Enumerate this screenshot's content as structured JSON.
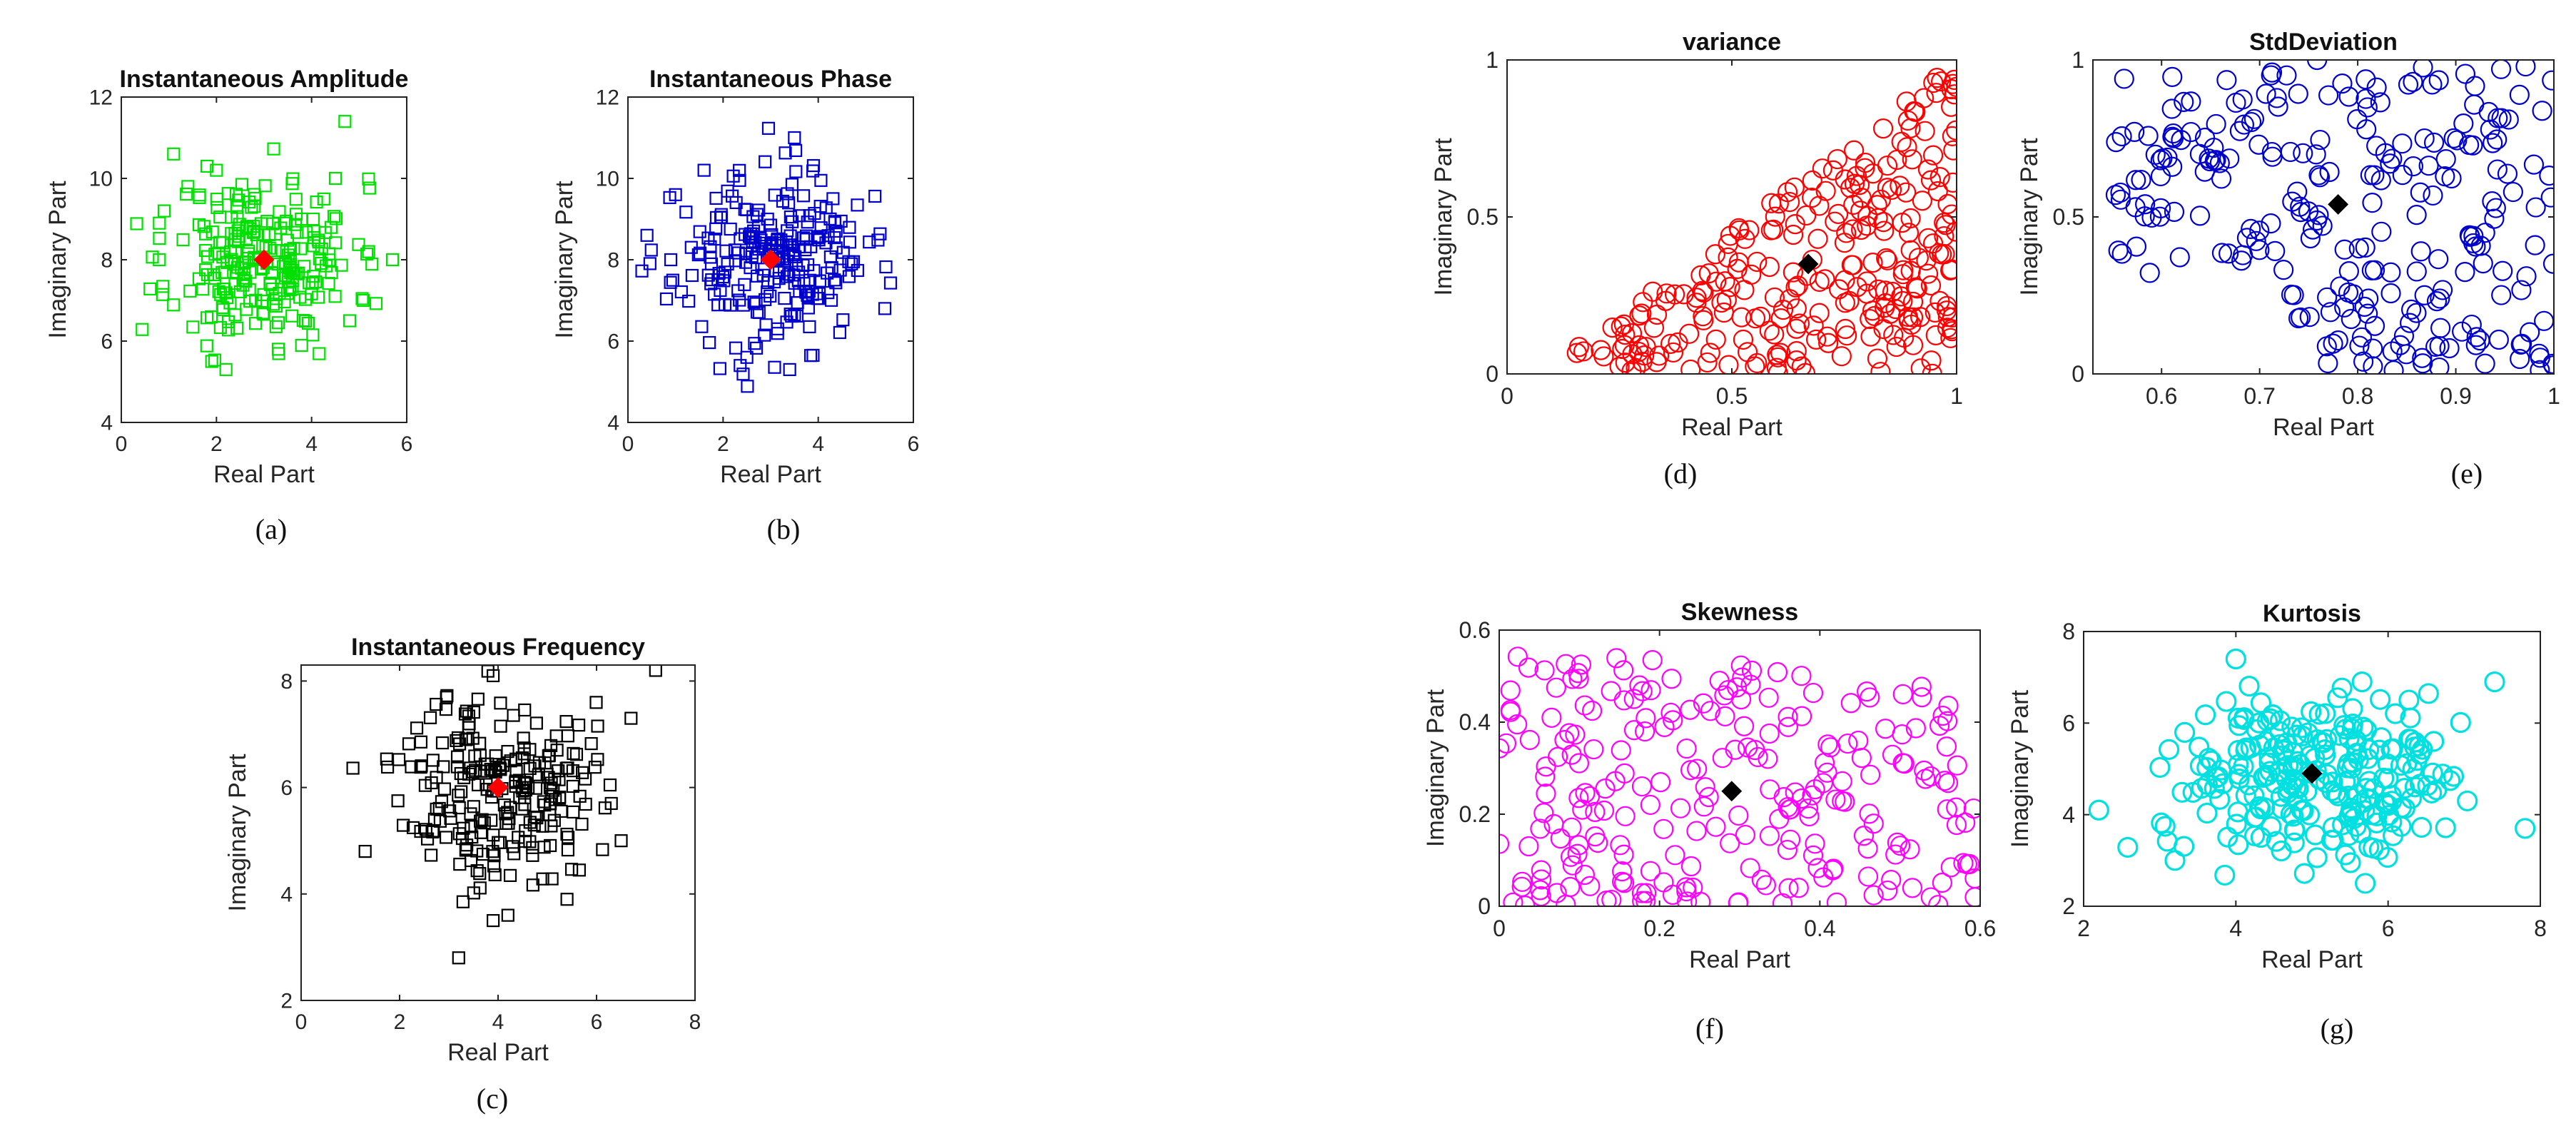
{
  "chart_data": [
    {
      "id": "a",
      "type": "scatter",
      "title": "Instantaneous Amplitude",
      "xlabel": "Real Part",
      "ylabel": "Imaginary Part",
      "caption": "(a)",
      "xlim": [
        0,
        6
      ],
      "ylim": [
        4,
        12
      ],
      "xticks": [
        "0",
        "2",
        "4",
        "6"
      ],
      "yticks": [
        "4",
        "6",
        "8",
        "10",
        "12"
      ],
      "marker": "square",
      "color": "#00e000",
      "center": [
        3.0,
        8.0
      ],
      "center_color": "#ff0000",
      "cloud": {
        "mx": 3.0,
        "my": 8.0,
        "sx": 0.95,
        "sy": 1.0,
        "n": 230,
        "seed": 11
      },
      "points": [
        [
          0.8,
          8.9
        ],
        [
          0.9,
          9.2
        ],
        [
          1.1,
          10.6
        ],
        [
          0.8,
          8.0
        ],
        [
          1.8,
          10.3
        ],
        [
          2.0,
          10.2
        ],
        [
          1.9,
          5.5
        ],
        [
          2.2,
          5.3
        ],
        [
          4.7,
          11.4
        ],
        [
          5.2,
          8.2
        ],
        [
          5.7,
          8.0
        ],
        [
          4.8,
          6.5
        ],
        [
          3.3,
          5.8
        ],
        [
          1.4,
          9.8
        ],
        [
          4.5,
          10.0
        ]
      ]
    },
    {
      "id": "b",
      "type": "scatter",
      "title": "Instantaneous Phase",
      "xlabel": "Real Part",
      "ylabel": "Imaginary Part",
      "caption": "(b)",
      "xlim": [
        0,
        6
      ],
      "ylim": [
        4,
        12
      ],
      "xticks": [
        "0",
        "2",
        "4",
        "6"
      ],
      "yticks": [
        "4",
        "6",
        "8",
        "10",
        "12"
      ],
      "marker": "square",
      "color": "#0000cc",
      "center": [
        3.0,
        8.0
      ],
      "center_color": "#ff0000",
      "cloud": {
        "mx": 3.0,
        "my": 8.0,
        "sx": 1.0,
        "sy": 1.05,
        "n": 240,
        "seed": 23
      },
      "points": [
        [
          0.4,
          8.6
        ],
        [
          0.9,
          8.0
        ],
        [
          1.6,
          10.2
        ],
        [
          3.5,
          11.0
        ],
        [
          5.4,
          6.8
        ],
        [
          4.7,
          7.9
        ],
        [
          3.4,
          5.3
        ],
        [
          2.5,
          5.6
        ],
        [
          1.0,
          9.6
        ]
      ]
    },
    {
      "id": "c",
      "type": "scatter",
      "title": "Instantaneous Frequency",
      "xlabel": "Real Part",
      "ylabel": "Imaginary Part",
      "caption": "(c)",
      "xlim": [
        0,
        8
      ],
      "ylim": [
        2,
        8.3
      ],
      "xticks": [
        "0",
        "2",
        "4",
        "6",
        "8"
      ],
      "yticks": [
        "2",
        "4",
        "6",
        "8"
      ],
      "marker": "square",
      "color": "#000000",
      "center": [
        4.0,
        6.0
      ],
      "center_color": "#ff0000",
      "cloud": {
        "mx": 4.0,
        "my": 6.0,
        "sx": 0.95,
        "sy": 0.9,
        "n": 230,
        "seed": 37
      },
      "points": [
        [
          1.3,
          4.8
        ],
        [
          3.2,
          2.8
        ],
        [
          3.9,
          3.5
        ],
        [
          7.2,
          8.2
        ],
        [
          6.7,
          7.3
        ],
        [
          6.3,
          5.7
        ],
        [
          6.5,
          5.0
        ],
        [
          5.4,
          3.9
        ],
        [
          3.9,
          8.1
        ],
        [
          4.2,
          3.6
        ]
      ]
    },
    {
      "id": "d",
      "type": "scatter",
      "title": "variance",
      "xlabel": "Real Part",
      "ylabel": "Imaginary Part",
      "caption": "(d)",
      "xlim": [
        0,
        1
      ],
      "ylim": [
        0,
        1
      ],
      "xticks": [
        "0",
        "0.5",
        "1"
      ],
      "yticks": [
        "0",
        "0.5",
        "1"
      ],
      "marker": "circle",
      "color": "#ff0000",
      "center": [
        0.67,
        0.35
      ],
      "center_color": "#000000",
      "cloud": {
        "mode": "triangle",
        "n": 270,
        "seed": 41
      },
      "points": []
    },
    {
      "id": "e",
      "type": "scatter",
      "title": "StdDeviation",
      "xlabel": "Real Part",
      "ylabel": "Imaginary Part",
      "caption": "(e)",
      "xlim": [
        0.53,
        1
      ],
      "ylim": [
        0,
        1
      ],
      "xticks": [
        "0.6",
        "0.7",
        "0.8",
        "0.9",
        "1"
      ],
      "xtick_values": [
        0.6,
        0.7,
        0.8,
        0.9,
        1.0
      ],
      "yticks": [
        "0",
        "0.5",
        "1"
      ],
      "marker": "circle",
      "color": "#0000cc",
      "center": [
        0.78,
        0.54
      ],
      "center_color": "#000000",
      "cloud": {
        "mode": "uniform_e",
        "n": 250,
        "seed": 53
      },
      "points": []
    },
    {
      "id": "f",
      "type": "scatter",
      "title": "Skewness",
      "xlabel": "Real Part",
      "ylabel": "Imaginary Part",
      "caption": "(f)",
      "xlim": [
        0,
        0.6
      ],
      "ylim": [
        0,
        0.6
      ],
      "xticks": [
        "0",
        "0.2",
        "0.4",
        "0.6"
      ],
      "yticks": [
        "0",
        "0.2",
        "0.4",
        "0.6"
      ],
      "marker": "circle",
      "color": "#ff00ff",
      "center": [
        0.29,
        0.25
      ],
      "center_color": "#000000",
      "cloud": {
        "mode": "uniform_f",
        "n": 240,
        "seed": 67
      },
      "points": []
    },
    {
      "id": "g",
      "type": "scatter",
      "title": "Kurtosis",
      "xlabel": "Real Part",
      "ylabel": "Imaginary Part",
      "caption": "(g)",
      "xlim": [
        2,
        8
      ],
      "ylim": [
        2,
        8
      ],
      "xticks": [
        "2",
        "4",
        "6",
        "8"
      ],
      "yticks": [
        "2",
        "4",
        "6",
        "8"
      ],
      "marker": "circle",
      "color": "#00e0e0",
      "center": [
        5.0,
        4.9
      ],
      "center_color": "#000000",
      "cloud": {
        "mx": 5.0,
        "my": 4.9,
        "sx": 0.95,
        "sy": 0.9,
        "n": 240,
        "seed": 79
      },
      "points": [
        [
          2.2,
          4.1
        ],
        [
          7.8,
          3.7
        ],
        [
          7.4,
          6.9
        ],
        [
          4.0,
          7.4
        ],
        [
          5.7,
          2.5
        ],
        [
          3.2,
          3.0
        ],
        [
          6.6,
          5.6
        ]
      ]
    }
  ]
}
